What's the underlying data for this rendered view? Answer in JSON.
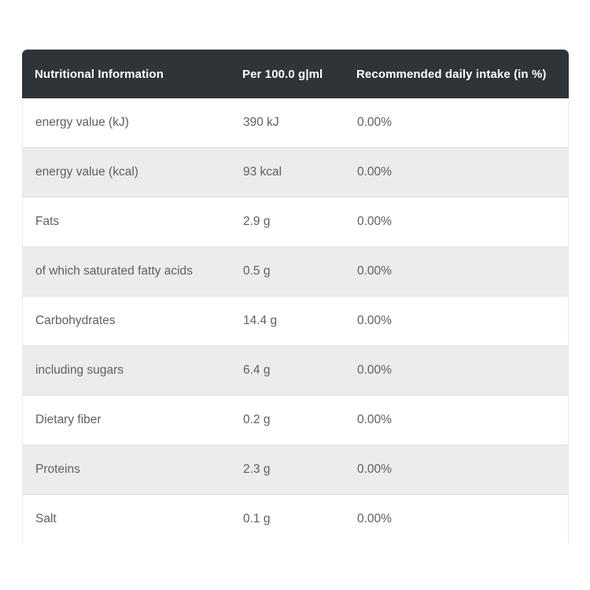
{
  "table": {
    "columns": [
      {
        "label": "Nutritional Information"
      },
      {
        "label": "Per 100.0 g|ml"
      },
      {
        "label": "Recommended daily intake (in %)"
      }
    ],
    "rows": [
      {
        "name": "energy value (kJ)",
        "amount": "390 kJ",
        "daily_intake": "0.00%"
      },
      {
        "name": "energy value (kcal)",
        "amount": "93 kcal",
        "daily_intake": "0.00%"
      },
      {
        "name": "Fats",
        "amount": "2.9 g",
        "daily_intake": "0.00%"
      },
      {
        "name": "of which saturated fatty acids",
        "amount": "0.5 g",
        "daily_intake": "0.00%"
      },
      {
        "name": "Carbohydrates",
        "amount": "14.4 g",
        "daily_intake": "0.00%"
      },
      {
        "name": "including sugars",
        "amount": "6.4 g",
        "daily_intake": "0.00%"
      },
      {
        "name": "Dietary fiber",
        "amount": "0.2 g",
        "daily_intake": "0.00%"
      },
      {
        "name": "Proteins",
        "amount": "2.3 g",
        "daily_intake": "0.00%"
      },
      {
        "name": "Salt",
        "amount": "0.1 g",
        "daily_intake": "0.00%"
      }
    ],
    "colors": {
      "header_bg": "#2f3438",
      "header_text": "#ffffff",
      "row_bg": "#ffffff",
      "row_alt_bg": "#ececec",
      "row_text": "#5c6066",
      "row_border": "#e4e4e4",
      "side_border": "#e7ebee"
    }
  }
}
